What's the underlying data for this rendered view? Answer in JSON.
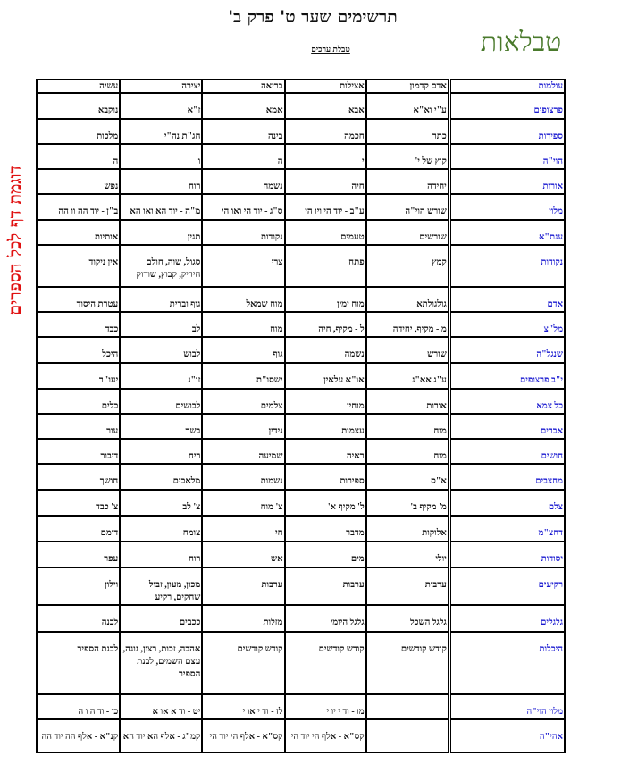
{
  "header": {
    "title": "תרשימים שער ט' פרק ב'",
    "subtitle": "טבלת ערכים",
    "logo": "טבלאות",
    "side_note": "דוגמת דף לכל הספרים"
  },
  "colors": {
    "row_header": "#1a1ad0",
    "logo": "#4a7a2c",
    "side_note": "#e01010"
  },
  "table": {
    "columns": [
      "עולמות",
      "אדם קדמון",
      "אצילות",
      "בריאה",
      "יצירה",
      "עשיה"
    ],
    "rows": [
      {
        "label": "פרצופים",
        "cells": [
          "ע\"י וא\"א",
          "אבא",
          "אמא",
          "ז\"א",
          "נוקבא"
        ]
      },
      {
        "label": "ספירות",
        "cells": [
          "כתר",
          "חכמה",
          "בינה",
          "חג\"ת נה\"י",
          "מלכות"
        ]
      },
      {
        "label": "הוי\"ה",
        "cells": [
          "קוץ של י'",
          "י",
          "ה",
          "ו",
          "ה"
        ]
      },
      {
        "label": "אורות",
        "cells": [
          "יחידה",
          "חיה",
          "נשמה",
          "רוח",
          "נפש"
        ]
      },
      {
        "label": "מלוי",
        "cells": [
          "שורש הוי\"ה",
          "ע\"ב - יוד הי ויו הי",
          "ס\"ג - יוד הי ואו הי",
          "מ\"ה - יוד הא ואו הא",
          "ב\"ן - יוד הה וו הה"
        ]
      },
      {
        "label": "ענת\"א",
        "cells": [
          "שורשים",
          "טעמים",
          "נקודות",
          "תגין",
          "אותיות"
        ]
      },
      {
        "label": "נקודות",
        "cells": [
          "קמץ",
          "פתח",
          "צרי",
          "סגול, שוה, חולם חיריק, קבוץ, שורוק",
          "אין ניקוד"
        ]
      },
      {
        "label": "אדם",
        "cells": [
          "גולגולתא",
          "מוח ימין",
          "מוח שמאל",
          "גוף וברית",
          "עטרת היסוד"
        ]
      },
      {
        "label": "מל\"צ",
        "cells": [
          "מ - מקיף, יחידה",
          "ל - מקיף, חיה",
          "מוח",
          "לב",
          "כבד"
        ]
      },
      {
        "label": "שנגל\"ה",
        "cells": [
          "שורש",
          "נשמה",
          "גוף",
          "לבוש",
          "היכל"
        ]
      },
      {
        "label": "י\"ב פרצופים",
        "cells": [
          "ע\"ג אא\"נ",
          "או\"א עלאין",
          "ישסו\"ת",
          "זו\"נ",
          "יעו\"ר"
        ]
      },
      {
        "label": "כל צמא",
        "cells": [
          "אורות",
          "מוחין",
          "צלמים",
          "לבושים",
          "כלים"
        ]
      },
      {
        "label": "אברים",
        "cells": [
          "מוח",
          "עצמות",
          "גידין",
          "בשר",
          "עור"
        ]
      },
      {
        "label": "חושים",
        "cells": [
          "מוח",
          "ראיה",
          "שמיעה",
          "ריח",
          "דיבור"
        ]
      },
      {
        "label": "מחצבים",
        "cells": [
          "א\"ס",
          "ספירות",
          "נשמות",
          "מלאכים",
          "חושך"
        ]
      },
      {
        "label": "צלם",
        "cells": [
          "מ' מקיף ב'",
          "ל' מקיף א'",
          "צ' מוח",
          "צ' לב",
          "צ' כבד"
        ]
      },
      {
        "label": "דחצ\"מ",
        "cells": [
          "אלוקות",
          "מדבר",
          "חי",
          "צומח",
          "דומם"
        ]
      },
      {
        "label": "יסודות",
        "cells": [
          "יולי",
          "מים",
          "אש",
          "רוח",
          "עפר"
        ]
      },
      {
        "label": "רקיעים",
        "cells": [
          "ערבות",
          "ערבות",
          "ערבות",
          "מכון, מעון, זבול שחקים, רקיע",
          "וילון"
        ]
      },
      {
        "label": "גלגלים",
        "cells": [
          "גלגל השכל",
          "גלגל היומי",
          "מזלות",
          "ככבים",
          "לבנה"
        ]
      },
      {
        "label": "היכלות",
        "cells": [
          "קודש קודשים",
          "קודש קודשים",
          "קודש קודשים",
          "אהבה, זכות, רצון, נוגה, עצם השמים, לבנת הספיר",
          "לבנת הספיר"
        ]
      },
      {
        "label": "מלוי הוי\"ה",
        "cells": [
          "",
          "מו - וד י יו י",
          "לז - וד י או י",
          "יט - וד א או א",
          "כו - וד ה ו ה"
        ]
      },
      {
        "label": "אהי\"ה",
        "cells": [
          "",
          "קס\"א - אלף הי יוד הי",
          "קס\"א - אלף הי יוד הי",
          "קמ\"ג - אלף הא יוד הא",
          "קנ\"א - אלף הה יוד הה"
        ]
      }
    ]
  }
}
